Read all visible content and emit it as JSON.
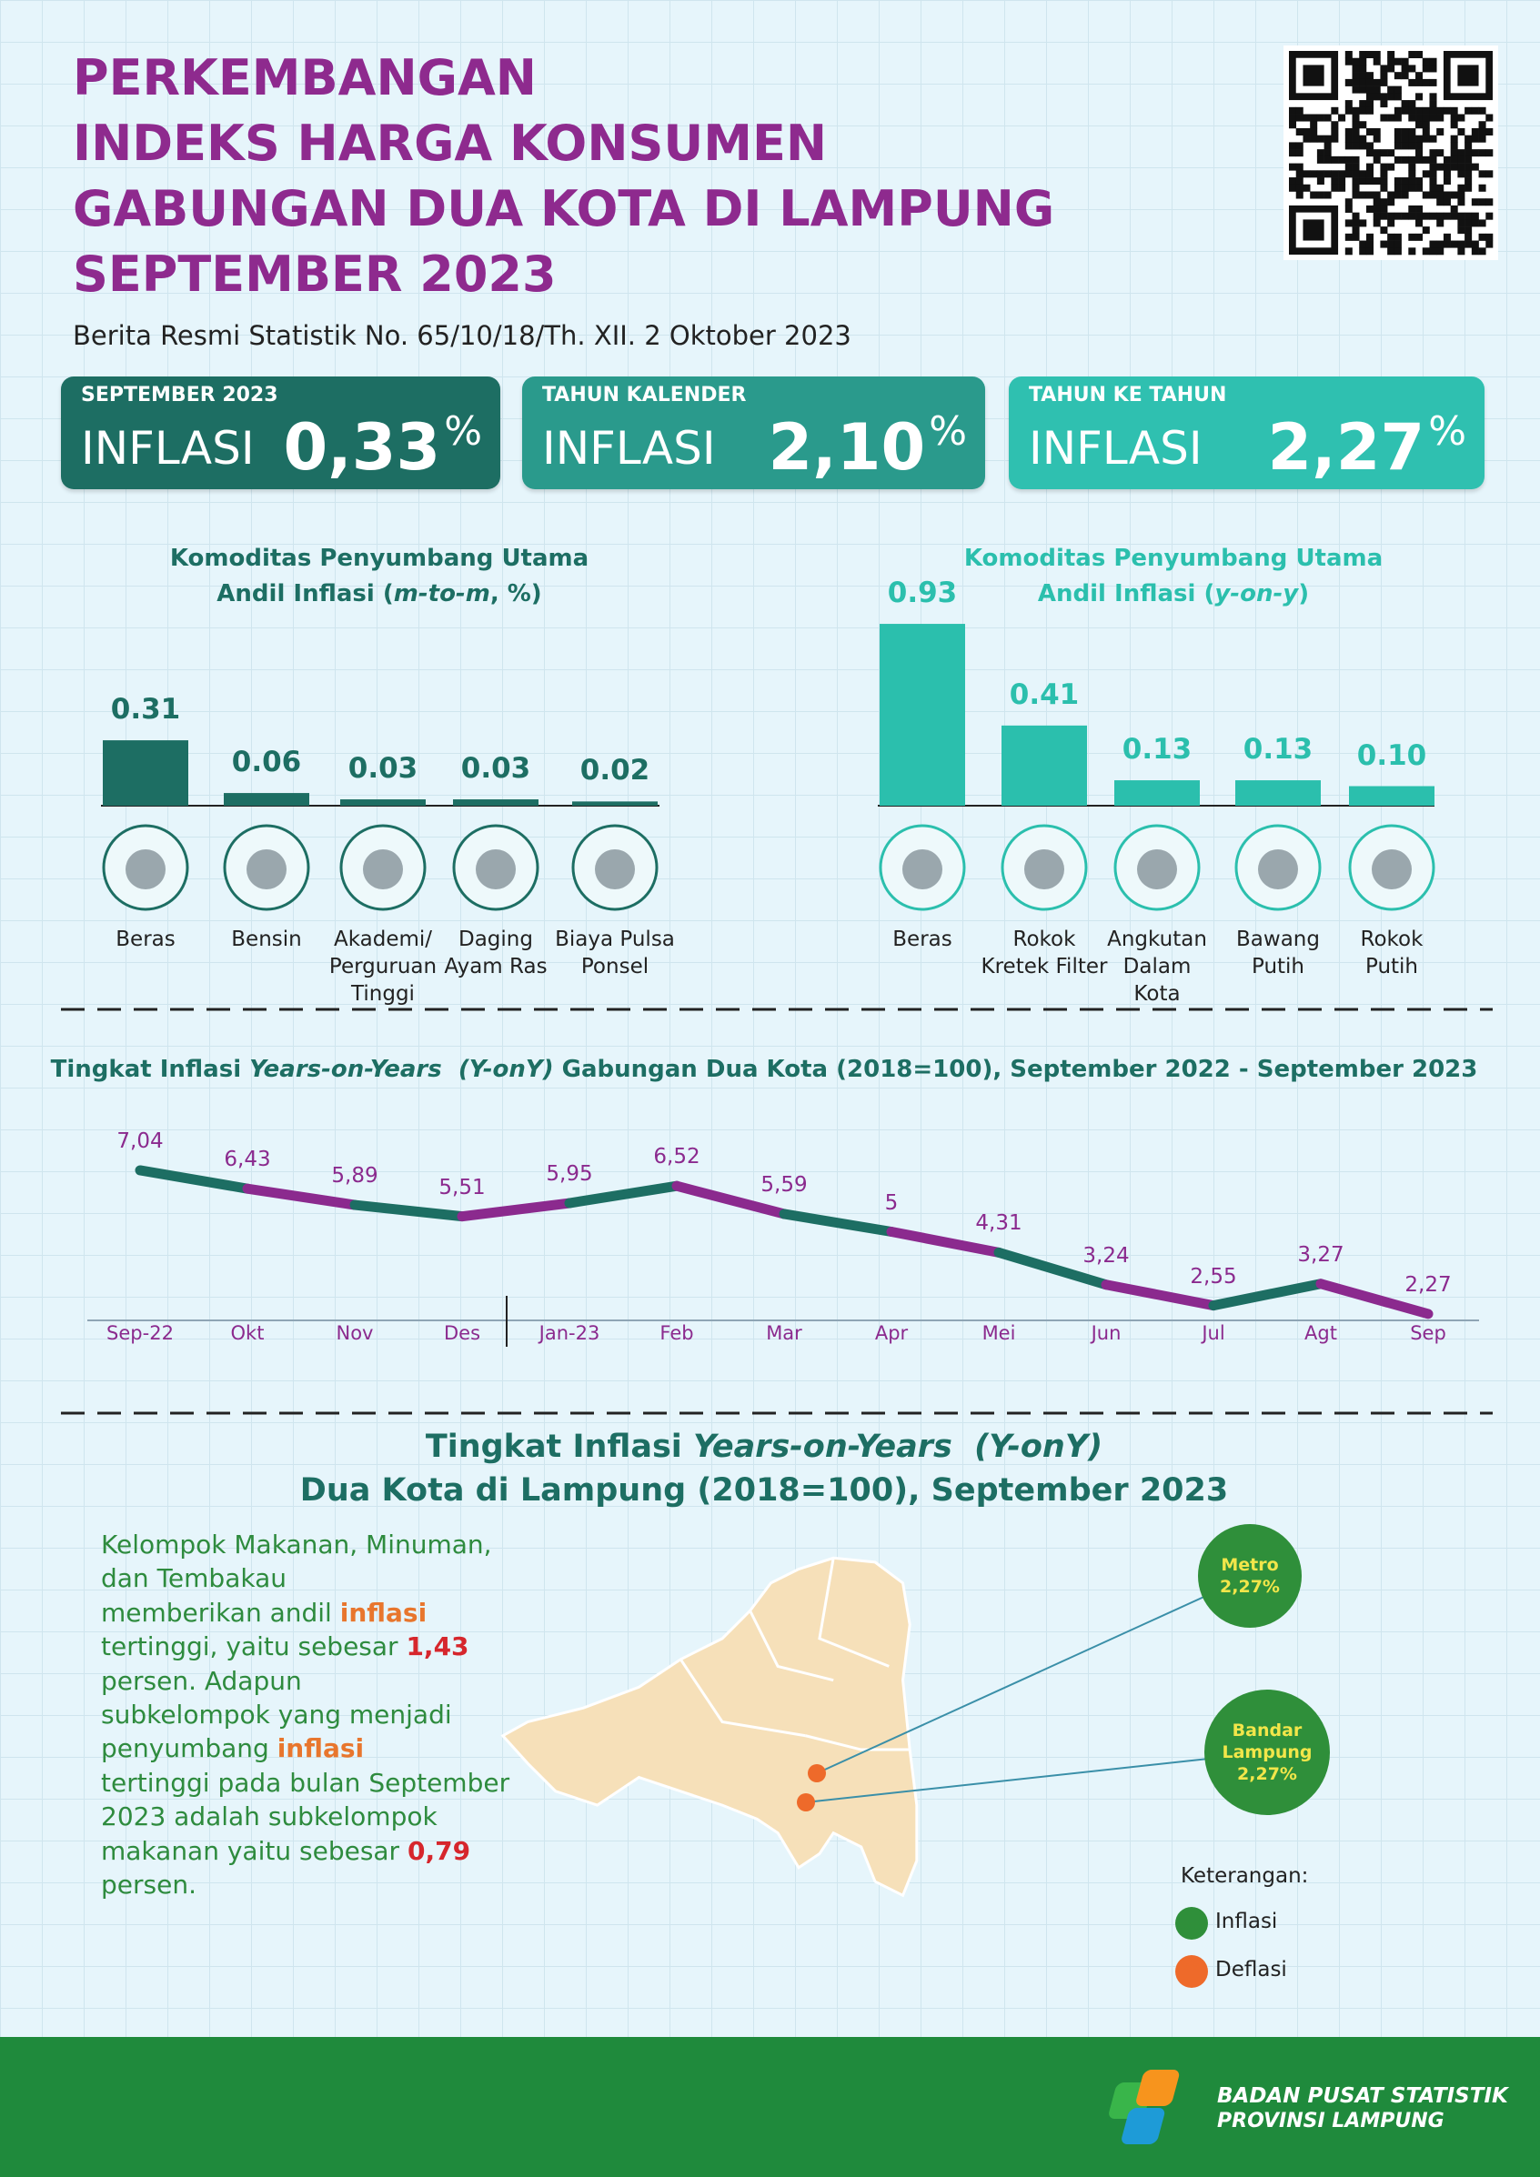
{
  "header": {
    "title": [
      "PERKEMBANGAN",
      "INDEKS HARGA KONSUMEN",
      "GABUNGAN DUA KOTA DI LAMPUNG",
      "SEPTEMBER 2023"
    ],
    "subtitle": "Berita Resmi Statistik No. 65/10/18/Th. XII. 2 Oktober 2023"
  },
  "cards": [
    {
      "label": "SEPTEMBER 2023",
      "text": "INFLASI",
      "value": "0,33",
      "unit": "%",
      "color": "#1d6e63"
    },
    {
      "label": "TAHUN KALENDER",
      "text": "INFLASI",
      "value": "2,10",
      "unit": "%",
      "color": "#2a9a8c"
    },
    {
      "label": "TAHUN KE TAHUN",
      "text": "INFLASI",
      "value": "2,27",
      "unit": "%",
      "color": "#2fc0b0"
    }
  ],
  "chart_data": [
    {
      "type": "bar",
      "title": "Komoditas Penyumbang Utama",
      "subtitle_parts": [
        "Andil Inflasi (",
        "m-to-m",
        ", %)"
      ],
      "categories": [
        "Beras",
        "Bensin",
        "Akademi/\nPerguruan\nTinggi",
        "Daging\nAyam Ras",
        "Biaya Pulsa\nPonsel"
      ],
      "values": [
        0.31,
        0.06,
        0.03,
        0.03,
        0.02
      ],
      "value_labels": [
        "0.31",
        "0.06",
        "0.03",
        "0.03",
        "0.02"
      ],
      "color": "#1d6e63"
    },
    {
      "type": "bar",
      "title": "Komoditas Penyumbang Utama",
      "subtitle_parts": [
        "Andil Inflasi (",
        "y-on-y",
        ")"
      ],
      "categories": [
        "Beras",
        "Rokok\nKretek Filter",
        "Angkutan\nDalam\nKota",
        "Bawang\nPutih",
        "Rokok\nPutih"
      ],
      "values": [
        0.93,
        0.41,
        0.13,
        0.13,
        0.1
      ],
      "value_labels": [
        "0.93",
        "0.41",
        "0.13",
        "0.13",
        "0.10"
      ],
      "color": "#2bbfad"
    },
    {
      "type": "line",
      "title_parts": [
        "Tingkat Inflasi ",
        "Years-on-Years  (Y-onY)",
        " Gabungan Dua Kota (2018=100), September 2022 - September 2023"
      ],
      "categories": [
        "Sep-22",
        "Okt",
        "Nov",
        "Des",
        "Jan-23",
        "Feb",
        "Mar",
        "Apr",
        "Mei",
        "Jun",
        "Jul",
        "Agt",
        "Sep"
      ],
      "values": [
        7.04,
        6.43,
        5.89,
        5.51,
        5.95,
        6.52,
        5.59,
        5,
        4.31,
        3.24,
        2.55,
        3.27,
        2.27
      ],
      "value_labels": [
        "7,04",
        "6,43",
        "5,89",
        "5,51",
        "5,95",
        "6,52",
        "5,59",
        "5",
        "4,31",
        "3,24",
        "2,55",
        "3,27",
        "2,27"
      ],
      "segment_colors": [
        "#1d6e63",
        "#8b2a8e"
      ],
      "label_color": "#8b2a8e"
    }
  ],
  "map_section": {
    "title_parts": [
      "Tingkat Inflasi ",
      "Years-on-Years  (Y-onY)"
    ],
    "subtitle": "Dua Kota di Lampung (2018=100), September 2023",
    "paragraph": [
      {
        "text": "Kelompok Makanan, Minuman,\ndan Tembakau\nmemberikan andil "
      },
      {
        "text": "inflasi",
        "color": "#e8762d"
      },
      {
        "text": "\ntertinggi, yaitu sebesar "
      },
      {
        "text": "1,43",
        "color": "#d6262c"
      },
      {
        "text": "\npersen. Adapun\nsubkelompok yang menjadi\npenyumbang "
      },
      {
        "text": "inflasi",
        "color": "#e8762d"
      },
      {
        "text": "\ntertinggi pada bulan September\n2023 adalah subkelompok\nmakanan yaitu sebesar "
      },
      {
        "text": "0,79",
        "color": "#d6262c"
      },
      {
        "text": "\npersen."
      }
    ],
    "cities": [
      {
        "name": "Metro",
        "value": "2,27%",
        "color": "#2f8f3a"
      },
      {
        "name": "Bandar\nLampung",
        "value": "2,27%",
        "color": "#2f8f3a"
      }
    ],
    "legend_title": "Keterangan:",
    "legend": [
      {
        "label": "Inflasi",
        "color": "#2f8f3a"
      },
      {
        "label": "Deflasi",
        "color": "#ee6a2a"
      }
    ]
  },
  "footer": {
    "line1": "BADAN PUSAT STATISTIK",
    "line2": "PROVINSI LAMPUNG"
  }
}
